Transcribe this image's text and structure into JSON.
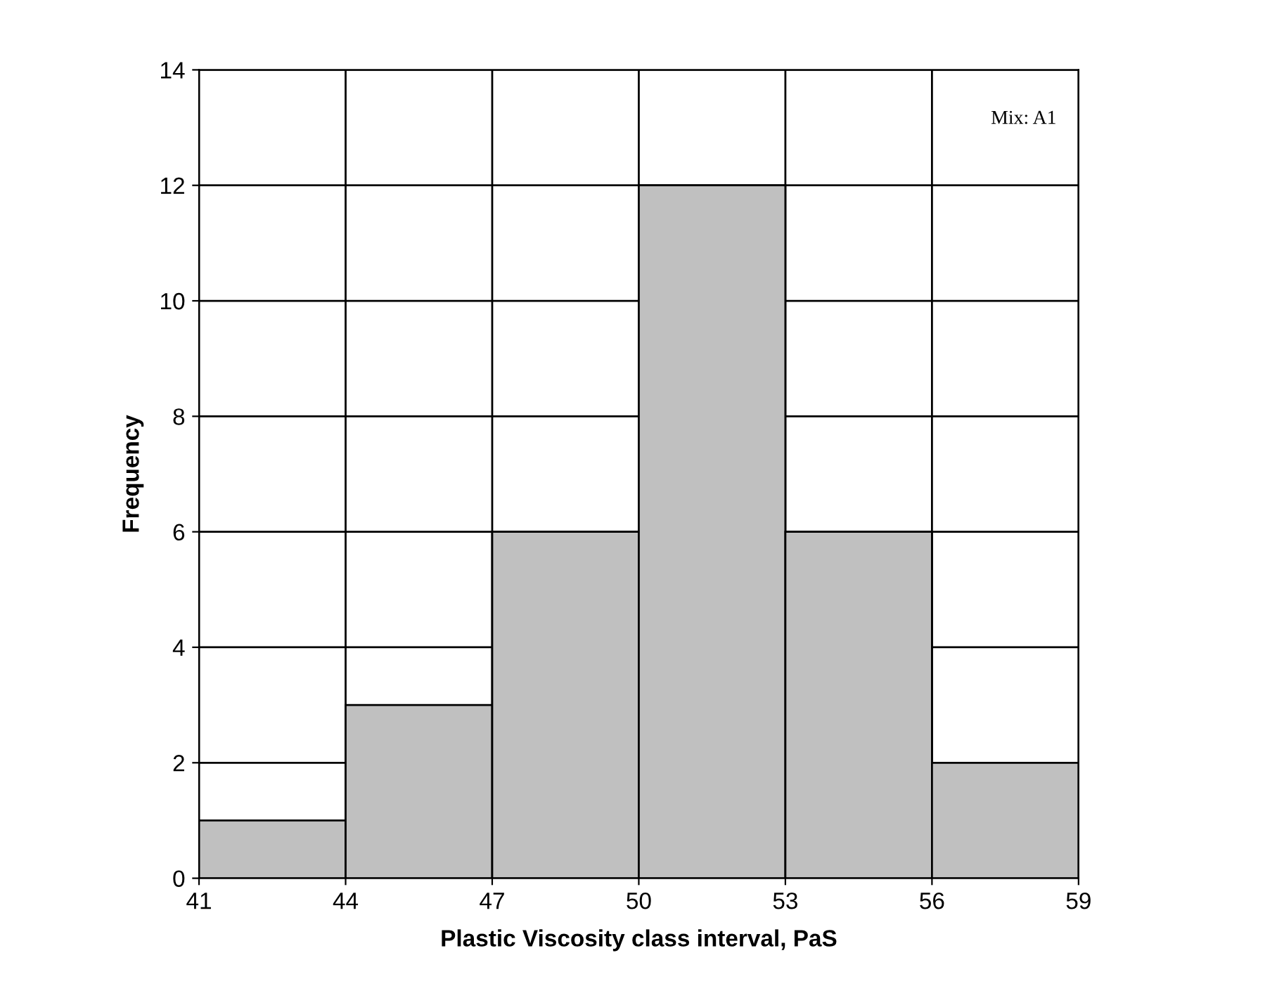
{
  "chart_data": {
    "type": "histogram",
    "xlabel": "Plastic Viscosity class interval, PaS",
    "ylabel": "Frequency",
    "bins": [
      41,
      44,
      47,
      50,
      53,
      56,
      59
    ],
    "values": [
      1,
      3,
      6,
      12,
      6,
      2
    ],
    "color": "#c0c0c0",
    "xlim": [
      41,
      59
    ],
    "xticks": [
      41,
      44,
      47,
      50,
      53,
      56,
      59
    ],
    "ylim": [
      0,
      14
    ],
    "yticks": [
      0,
      2,
      4,
      6,
      8,
      10,
      12,
      14
    ],
    "grid": true,
    "annotations": [
      "Mix: A1"
    ]
  }
}
